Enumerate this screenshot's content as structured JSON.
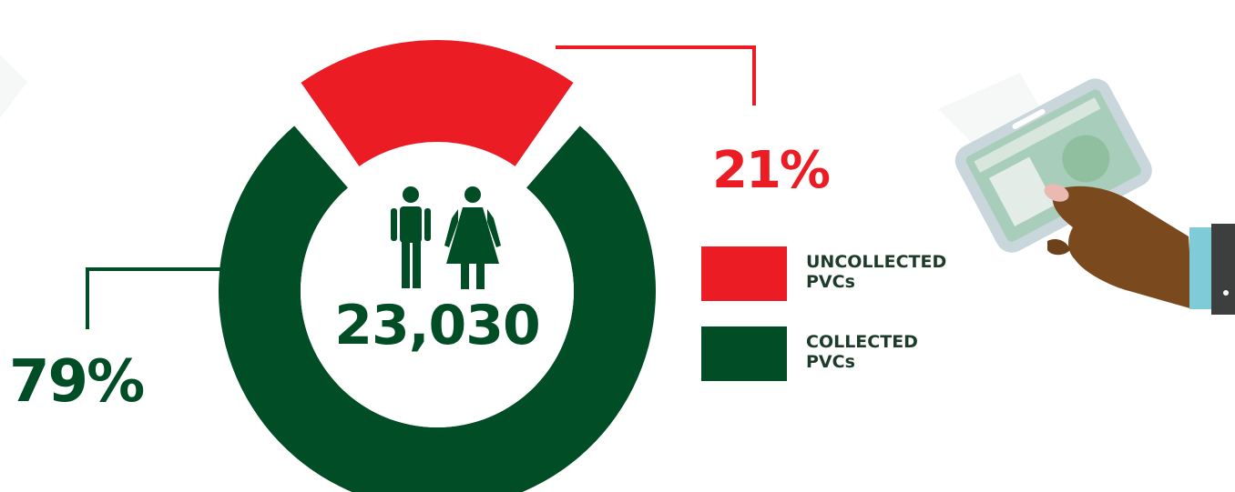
{
  "chart_data": {
    "type": "pie",
    "variant": "donut",
    "center_label": "23,030",
    "center_icon": "man-and-woman-icon",
    "slices": [
      {
        "label": "UNCOLLECTED\nPVCs",
        "value": 21,
        "display": "21%",
        "color": "#ec1c24",
        "exploded": true
      },
      {
        "label": "COLLECTED\nPVCs",
        "value": 79,
        "display": "79%",
        "color": "#004d26"
      }
    ],
    "legend_position": "right"
  },
  "colors": {
    "collected": "#004d26",
    "uncollected": "#ec1c24",
    "legend_text": "#1d3b2a"
  },
  "illustration": "hand-holding-pvc-card"
}
